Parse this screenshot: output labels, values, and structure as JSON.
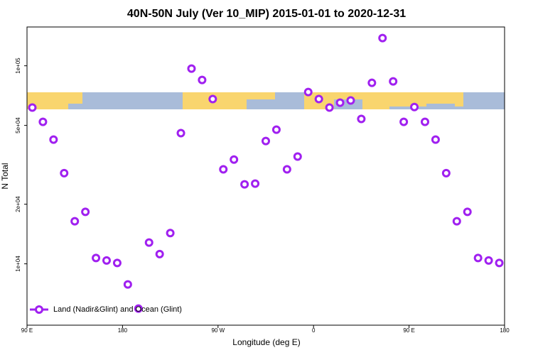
{
  "chart_data": {
    "type": "scatter",
    "title": "40N-50N July (Ver 10_MIP)   2015-01-01 to 2020-12-31",
    "x_label": "Longitude (deg E)",
    "y_label": "N Total",
    "log_y": true,
    "legend": "bottom-left",
    "xlim": [
      90,
      540
    ],
    "xticks": [
      {
        "value": 90,
        "label": "90 E"
      },
      {
        "value": 180,
        "label": "180"
      },
      {
        "value": 270,
        "label": "90 W"
      },
      {
        "value": 360,
        "label": "0"
      },
      {
        "value": 450,
        "label": "90 E"
      },
      {
        "value": 540,
        "label": "180"
      }
    ],
    "ylim": [
      4900,
      157000
    ],
    "yticks": [
      {
        "value": 10000,
        "label": "1e+04"
      },
      {
        "value": 20000,
        "label": "2e+04"
      },
      {
        "value": 50000,
        "label": "5e+04"
      },
      {
        "value": 100000,
        "label": "1e+05"
      }
    ],
    "series": [
      {
        "name": "Land (Nadir&Glint) and Ocean (Glint)",
        "color": "#a020f0",
        "x": [
          95,
          105,
          115,
          125,
          135,
          145,
          155,
          165,
          175,
          185,
          195,
          205,
          215,
          225,
          235,
          245,
          255,
          265,
          275,
          285,
          295,
          305,
          315,
          325,
          335,
          345,
          355,
          365,
          375,
          385,
          395,
          405,
          415,
          425,
          435,
          445,
          455,
          465,
          475,
          485,
          495,
          505,
          515,
          525,
          535
        ],
        "values": [
          61500,
          52100,
          42400,
          28700,
          16400,
          18300,
          10700,
          10400,
          10100,
          7870,
          5940,
          12800,
          11200,
          14300,
          45700,
          96800,
          84800,
          67900,
          30000,
          33600,
          25200,
          25400,
          41700,
          47600,
          30000,
          34800,
          73700,
          67900,
          61500,
          65100,
          66800,
          53900,
          82000,
          138000,
          83400,
          52100,
          61900,
          52100,
          42400,
          28700,
          16400,
          18300,
          10700,
          10400,
          10100
        ]
      }
    ]
  }
}
